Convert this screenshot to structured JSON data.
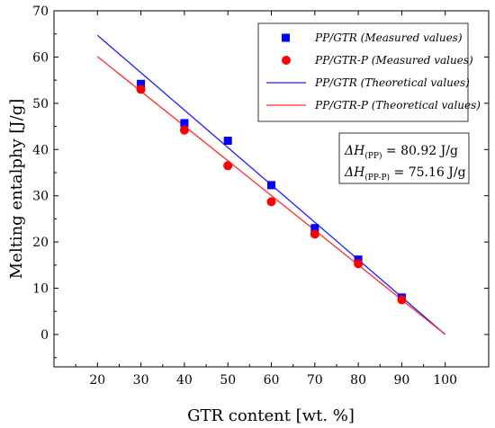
{
  "chart_data": {
    "type": "scatter",
    "xlabel": "GTR content [wt. %]",
    "ylabel": "Melting entalphy [J/g]",
    "xlim": [
      10,
      110
    ],
    "ylim": [
      -7,
      70
    ],
    "xticks": [
      20,
      30,
      40,
      50,
      60,
      70,
      80,
      90,
      100
    ],
    "yticks": [
      0,
      10,
      20,
      30,
      40,
      50,
      60,
      70
    ],
    "grid": false,
    "legend": "top-right",
    "series": [
      {
        "name": "PP/GTR (Measured values)",
        "kind": "scatter",
        "marker": "square",
        "color": "#0000ff",
        "x": [
          30,
          40,
          50,
          60,
          70,
          80,
          90
        ],
        "y": [
          54.2,
          45.7,
          41.9,
          32.3,
          23.0,
          16.2,
          8.0
        ]
      },
      {
        "name": "PP/GTR-P (Measured values)",
        "kind": "scatter",
        "marker": "circle",
        "color": "#ff0000",
        "x": [
          30,
          40,
          50,
          60,
          70,
          80,
          90
        ],
        "y": [
          53.0,
          44.2,
          36.5,
          28.7,
          21.7,
          15.3,
          7.5
        ]
      },
      {
        "name": "PP/GTR (Theoretical values)",
        "kind": "line",
        "color": "#1f1fff",
        "x": [
          20,
          100
        ],
        "y": [
          64.7,
          0
        ]
      },
      {
        "name": "PP/GTR-P (Theoretical values)",
        "kind": "line",
        "color": "#ff2a2a",
        "x": [
          20,
          100
        ],
        "y": [
          60.1,
          0
        ]
      }
    ],
    "annotations": [
      {
        "symbol": "ΔH",
        "sub": "(PP)",
        "value": " = 80.92 J/g"
      },
      {
        "symbol": "ΔH",
        "sub": "(PP-P)",
        "value": " = 75.16 J/g"
      }
    ]
  }
}
